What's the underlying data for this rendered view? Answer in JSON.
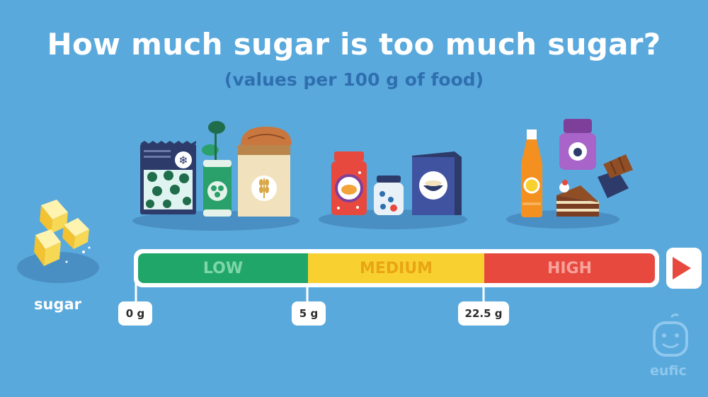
{
  "header": {
    "title": "How much sugar is too much sugar?",
    "subtitle": "(values per 100 g of food)"
  },
  "scale": {
    "bands": [
      {
        "label": "LOW",
        "color": "#21a66a",
        "text_color": "#7fd7a8"
      },
      {
        "label": "MEDIUM",
        "color": "#f8d030",
        "text_color": "#e9a514"
      },
      {
        "label": "HIGH",
        "color": "#e8493f",
        "text_color": "#f7a29a"
      }
    ],
    "thresholds": [
      "0 g",
      "5 g",
      "22.5 g"
    ]
  },
  "sugar_label": "sugar",
  "brand": {
    "name": "eufic"
  },
  "colors": {
    "background": "#5aa9dc",
    "subtitle": "#2f6fb0",
    "arrow": "#e8493f"
  }
}
